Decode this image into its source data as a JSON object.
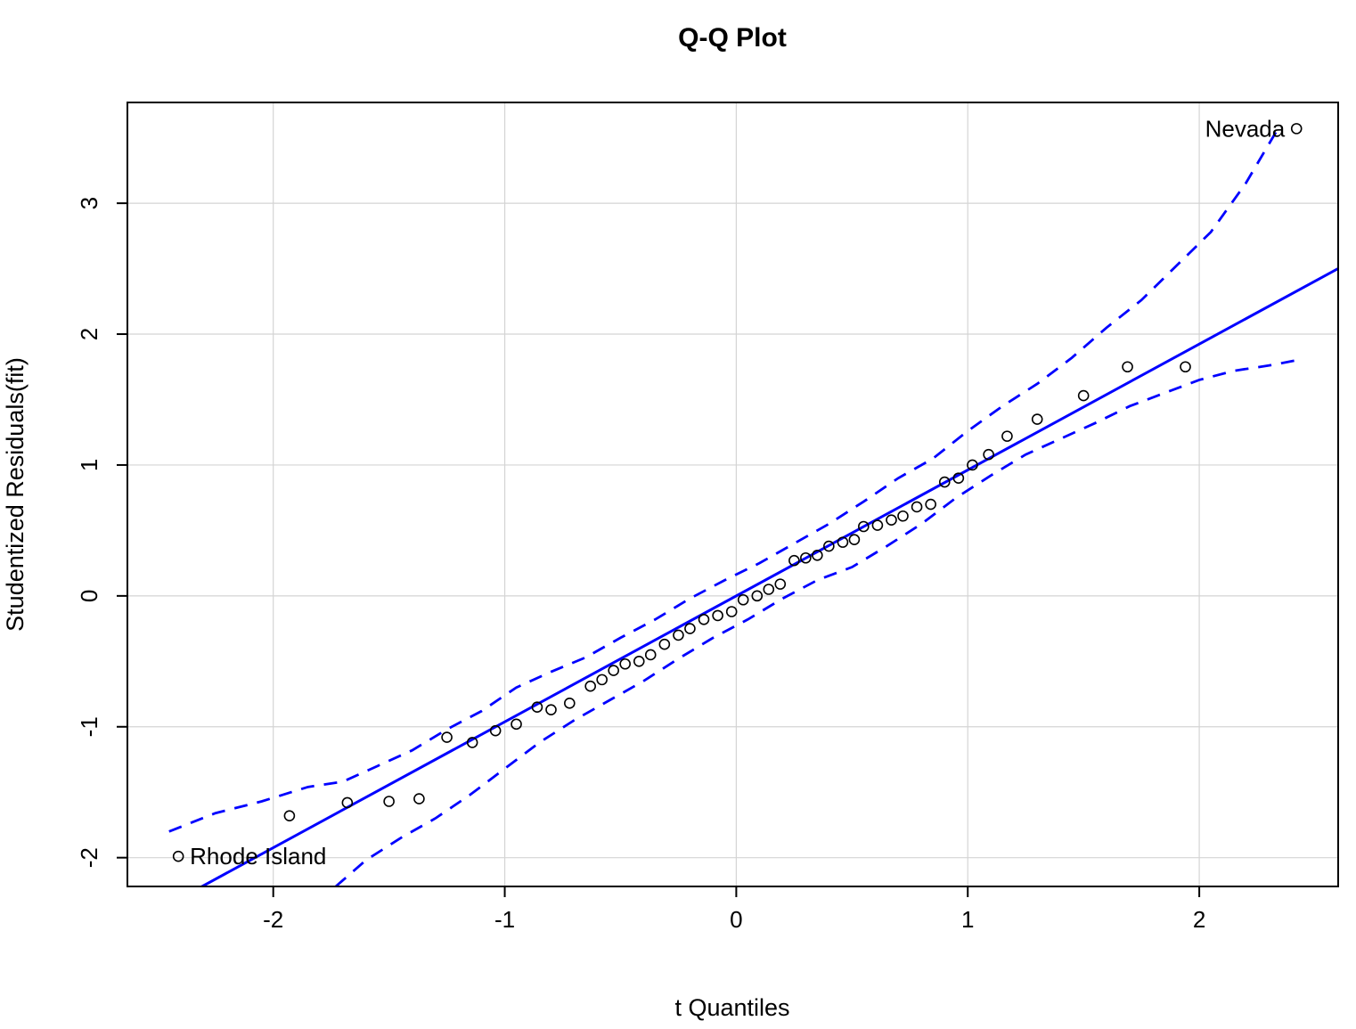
{
  "chart_data": {
    "type": "scatter",
    "title": "Q-Q Plot",
    "xlabel": "t Quantiles",
    "ylabel": "Studentized Residuals(fit)",
    "xlim": [
      -2.63,
      2.6
    ],
    "ylim": [
      -2.22,
      3.77
    ],
    "x_ticks": [
      -2,
      -1,
      0,
      1,
      2
    ],
    "y_ticks": [
      -2,
      -1,
      0,
      1,
      2,
      3
    ],
    "grid": true,
    "legend": "none",
    "colors": {
      "reference_line": "#0000ff",
      "envelope": "#0000ff",
      "points": "#000000",
      "grid": "#d4d4d4",
      "axis": "#000000"
    },
    "reference_line": {
      "slope": 0.962,
      "intercept": 0.0
    },
    "points": [
      [
        -2.41,
        -1.99
      ],
      [
        -1.93,
        -1.68
      ],
      [
        -1.68,
        -1.58
      ],
      [
        -1.5,
        -1.57
      ],
      [
        -1.37,
        -1.55
      ],
      [
        -1.25,
        -1.08
      ],
      [
        -1.14,
        -1.12
      ],
      [
        -1.04,
        -1.03
      ],
      [
        -0.95,
        -0.98
      ],
      [
        -0.86,
        -0.85
      ],
      [
        -0.8,
        -0.87
      ],
      [
        -0.72,
        -0.82
      ],
      [
        -0.63,
        -0.69
      ],
      [
        -0.58,
        -0.64
      ],
      [
        -0.53,
        -0.57
      ],
      [
        -0.48,
        -0.52
      ],
      [
        -0.42,
        -0.5
      ],
      [
        -0.37,
        -0.45
      ],
      [
        -0.31,
        -0.37
      ],
      [
        -0.25,
        -0.3
      ],
      [
        -0.2,
        -0.25
      ],
      [
        -0.14,
        -0.18
      ],
      [
        -0.08,
        -0.15
      ],
      [
        -0.02,
        -0.12
      ],
      [
        0.03,
        -0.03
      ],
      [
        0.09,
        0.0
      ],
      [
        0.14,
        0.05
      ],
      [
        0.19,
        0.09
      ],
      [
        0.25,
        0.27
      ],
      [
        0.3,
        0.29
      ],
      [
        0.35,
        0.31
      ],
      [
        0.4,
        0.38
      ],
      [
        0.46,
        0.41
      ],
      [
        0.51,
        0.43
      ],
      [
        0.55,
        0.53
      ],
      [
        0.61,
        0.54
      ],
      [
        0.67,
        0.58
      ],
      [
        0.72,
        0.61
      ],
      [
        0.78,
        0.68
      ],
      [
        0.84,
        0.7
      ],
      [
        0.9,
        0.87
      ],
      [
        0.96,
        0.9
      ],
      [
        1.02,
        1.0
      ],
      [
        1.09,
        1.08
      ],
      [
        1.17,
        1.22
      ],
      [
        1.3,
        1.35
      ],
      [
        1.5,
        1.53
      ],
      [
        1.69,
        1.75
      ],
      [
        1.94,
        1.75
      ],
      [
        2.42,
        3.57
      ]
    ],
    "envelope_upper": [
      [
        -2.45,
        -1.8
      ],
      [
        -2.25,
        -1.66
      ],
      [
        -2.05,
        -1.57
      ],
      [
        -1.85,
        -1.46
      ],
      [
        -1.7,
        -1.42
      ],
      [
        -1.55,
        -1.3
      ],
      [
        -1.4,
        -1.18
      ],
      [
        -1.25,
        -1.02
      ],
      [
        -1.1,
        -0.88
      ],
      [
        -0.95,
        -0.7
      ],
      [
        -0.8,
        -0.58
      ],
      [
        -0.65,
        -0.47
      ],
      [
        -0.5,
        -0.32
      ],
      [
        -0.35,
        -0.18
      ],
      [
        -0.2,
        -0.02
      ],
      [
        -0.05,
        0.12
      ],
      [
        0.1,
        0.25
      ],
      [
        0.25,
        0.4
      ],
      [
        0.4,
        0.55
      ],
      [
        0.55,
        0.72
      ],
      [
        0.7,
        0.9
      ],
      [
        0.85,
        1.05
      ],
      [
        1.0,
        1.26
      ],
      [
        1.15,
        1.45
      ],
      [
        1.3,
        1.62
      ],
      [
        1.45,
        1.82
      ],
      [
        1.6,
        2.05
      ],
      [
        1.75,
        2.26
      ],
      [
        1.9,
        2.52
      ],
      [
        2.05,
        2.78
      ],
      [
        2.2,
        3.15
      ],
      [
        2.35,
        3.6
      ]
    ],
    "envelope_lower": [
      [
        -1.73,
        -2.22
      ],
      [
        -1.6,
        -2.02
      ],
      [
        -1.45,
        -1.85
      ],
      [
        -1.3,
        -1.7
      ],
      [
        -1.15,
        -1.52
      ],
      [
        -1.0,
        -1.32
      ],
      [
        -0.85,
        -1.12
      ],
      [
        -0.7,
        -0.95
      ],
      [
        -0.55,
        -0.8
      ],
      [
        -0.4,
        -0.65
      ],
      [
        -0.25,
        -0.48
      ],
      [
        -0.1,
        -0.32
      ],
      [
        0.05,
        -0.18
      ],
      [
        0.2,
        -0.02
      ],
      [
        0.35,
        0.12
      ],
      [
        0.5,
        0.22
      ],
      [
        0.65,
        0.38
      ],
      [
        0.8,
        0.55
      ],
      [
        0.95,
        0.75
      ],
      [
        1.1,
        0.92
      ],
      [
        1.25,
        1.08
      ],
      [
        1.4,
        1.2
      ],
      [
        1.55,
        1.32
      ],
      [
        1.7,
        1.45
      ],
      [
        1.85,
        1.55
      ],
      [
        2.0,
        1.65
      ],
      [
        2.15,
        1.72
      ],
      [
        2.3,
        1.76
      ],
      [
        2.42,
        1.8
      ]
    ],
    "annotations": [
      {
        "label": "Nevada",
        "x": 2.42,
        "y": 3.57,
        "align": "left-of-point"
      },
      {
        "label": "Rhode Island",
        "x": -2.41,
        "y": -1.99,
        "align": "right-of-point"
      }
    ]
  }
}
